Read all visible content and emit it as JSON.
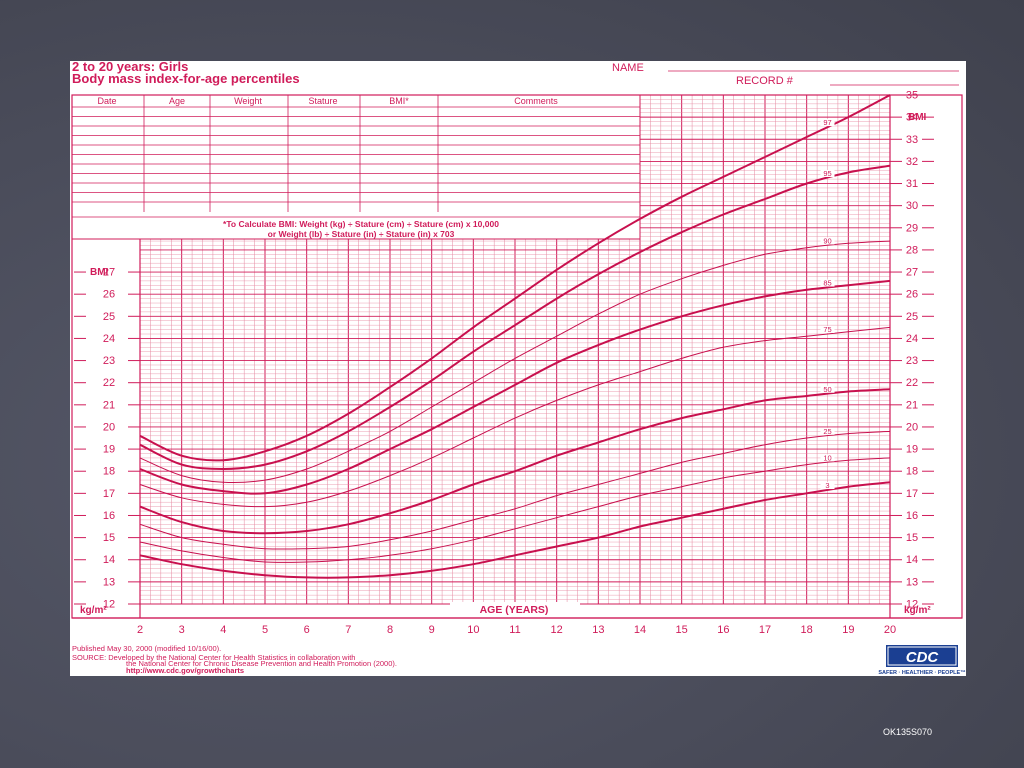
{
  "header": {
    "title_line1": "2 to 20 years: Girls",
    "title_line2": "Body mass index-for-age percentiles",
    "name_label": "NAME",
    "record_label": "RECORD #"
  },
  "record_table": {
    "columns": [
      "Date",
      "Age",
      "Weight",
      "Stature",
      "BMI*",
      "Comments"
    ],
    "formula_line1": "*To Calculate BMI: Weight (kg) ÷ Stature (cm) ÷ Stature (cm) x 10,000",
    "formula_line2": "or Weight (lb) ÷ Stature (in) ÷ Stature (in) x 703"
  },
  "footer": {
    "published": "Published May 30, 2000 (modified 10/16/00).",
    "source_line1": "SOURCE: Developed by the National Center for Health Statistics in collaboration with",
    "source_line2": "the National Center for Chronic Disease Prevention and Health Promotion (2000).",
    "url": "http://www.cdc.gov/growthcharts",
    "cdc_logo_text": "CDC",
    "cdc_tagline": "SAFER · HEALTHIER · PEOPLE™"
  },
  "slide_code": "OK135S070",
  "colors": {
    "ink": "#d01c5a",
    "grid": "#e6869f",
    "background": "#4a4c5a"
  },
  "chart_data": {
    "type": "line",
    "title": "Body mass index-for-age percentiles",
    "xlabel": "AGE (YEARS)",
    "ylabel_left": "BMI",
    "ylabel_right": "BMI",
    "unit_label": "kg/m²",
    "xlim": [
      2,
      20
    ],
    "ylim": [
      12,
      35
    ],
    "x_ticks": [
      2,
      3,
      4,
      5,
      6,
      7,
      8,
      9,
      10,
      11,
      12,
      13,
      14,
      15,
      16,
      17,
      18,
      19,
      20
    ],
    "y_ticks_right": [
      12,
      13,
      14,
      15,
      16,
      17,
      18,
      19,
      20,
      21,
      22,
      23,
      24,
      25,
      26,
      27,
      28,
      29,
      30,
      31,
      32,
      33,
      34,
      35
    ],
    "y_ticks_left": [
      12,
      13,
      14,
      15,
      16,
      17,
      18,
      19,
      20,
      21,
      22,
      23,
      24,
      25,
      26,
      27
    ],
    "grid": true,
    "x": [
      2,
      3,
      4,
      5,
      6,
      7,
      8,
      9,
      10,
      11,
      12,
      13,
      14,
      15,
      16,
      17,
      18,
      19,
      20
    ],
    "series": [
      {
        "name": "97",
        "values": [
          19.6,
          18.7,
          18.5,
          18.9,
          19.6,
          20.6,
          21.8,
          23.1,
          24.5,
          25.8,
          27.1,
          28.3,
          29.4,
          30.4,
          31.3,
          32.2,
          33.1,
          34.0,
          35.0
        ]
      },
      {
        "name": "95",
        "values": [
          19.2,
          18.3,
          18.1,
          18.3,
          18.9,
          19.8,
          20.9,
          22.1,
          23.4,
          24.6,
          25.8,
          26.9,
          27.9,
          28.8,
          29.6,
          30.3,
          31.0,
          31.5,
          31.8
        ]
      },
      {
        "name": "90",
        "values": [
          18.6,
          17.8,
          17.5,
          17.6,
          18.1,
          18.9,
          19.8,
          20.9,
          22.0,
          23.1,
          24.1,
          25.1,
          26.0,
          26.7,
          27.3,
          27.8,
          28.1,
          28.3,
          28.4
        ]
      },
      {
        "name": "85",
        "values": [
          18.1,
          17.4,
          17.1,
          17.0,
          17.4,
          18.1,
          19.0,
          19.9,
          20.9,
          21.9,
          22.9,
          23.7,
          24.4,
          25.0,
          25.5,
          25.9,
          26.2,
          26.4,
          26.6
        ]
      },
      {
        "name": "75",
        "values": [
          17.4,
          16.8,
          16.5,
          16.4,
          16.6,
          17.1,
          17.8,
          18.6,
          19.5,
          20.4,
          21.2,
          21.9,
          22.5,
          23.1,
          23.6,
          23.9,
          24.1,
          24.3,
          24.5
        ]
      },
      {
        "name": "50",
        "values": [
          16.4,
          15.7,
          15.3,
          15.2,
          15.3,
          15.6,
          16.1,
          16.7,
          17.4,
          18.0,
          18.7,
          19.3,
          19.9,
          20.4,
          20.8,
          21.2,
          21.4,
          21.6,
          21.7
        ]
      },
      {
        "name": "25",
        "values": [
          15.6,
          15.0,
          14.7,
          14.5,
          14.5,
          14.6,
          14.9,
          15.3,
          15.8,
          16.3,
          16.9,
          17.4,
          17.9,
          18.4,
          18.8,
          19.2,
          19.5,
          19.7,
          19.8
        ]
      },
      {
        "name": "10",
        "values": [
          14.8,
          14.4,
          14.1,
          13.9,
          13.9,
          14.0,
          14.2,
          14.5,
          14.9,
          15.4,
          15.9,
          16.4,
          16.9,
          17.3,
          17.7,
          18.0,
          18.3,
          18.5,
          18.6
        ]
      },
      {
        "name": "3",
        "values": [
          14.2,
          13.8,
          13.5,
          13.3,
          13.2,
          13.2,
          13.3,
          13.5,
          13.8,
          14.2,
          14.6,
          15.0,
          15.5,
          15.9,
          16.3,
          16.7,
          17.0,
          17.3,
          17.5
        ]
      }
    ]
  }
}
